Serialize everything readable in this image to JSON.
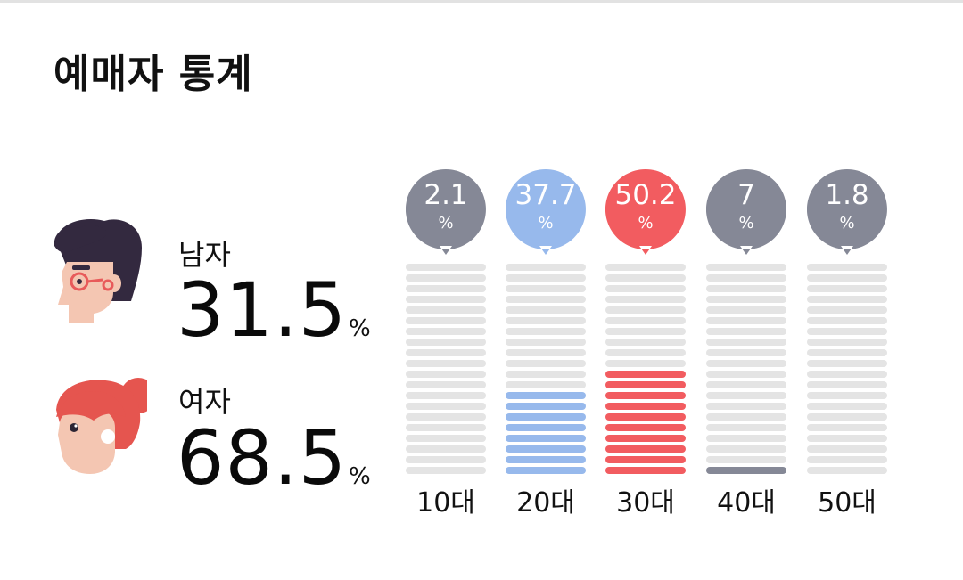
{
  "title": "예매자 통계",
  "gender": {
    "male": {
      "label": "남자",
      "value": "31.5",
      "unit": "%"
    },
    "female": {
      "label": "여자",
      "value": "68.5",
      "unit": "%"
    }
  },
  "colors": {
    "neutral": "#858896",
    "highlight_blue": "#97b9ec",
    "highlight_red": "#f25c60",
    "empty_segment": "#e4e4e4"
  },
  "age_groups": [
    {
      "label": "10대",
      "percent": "2.1",
      "unit": "%",
      "filled_segments": 0,
      "color": "#858896"
    },
    {
      "label": "20대",
      "percent": "37.7",
      "unit": "%",
      "filled_segments": 8,
      "color": "#97b9ec"
    },
    {
      "label": "30대",
      "percent": "50.2",
      "unit": "%",
      "filled_segments": 10,
      "color": "#f25c60"
    },
    {
      "label": "40대",
      "percent": "7",
      "unit": "%",
      "filled_segments": 1,
      "color": "#858896"
    },
    {
      "label": "50대",
      "percent": "1.8",
      "unit": "%",
      "filled_segments": 0,
      "color": "#858896"
    }
  ],
  "segments_per_column": 20
}
